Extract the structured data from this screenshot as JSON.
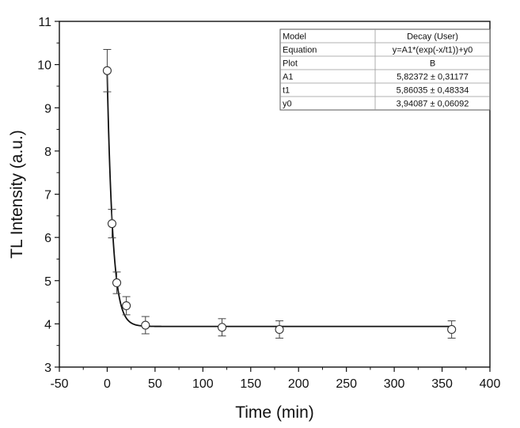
{
  "chart_data": {
    "type": "scatter",
    "xlabel": "Time (min)",
    "ylabel": "TL Intensity (a.u.)",
    "xlim": [
      -50,
      400
    ],
    "ylim": [
      3,
      11
    ],
    "x_ticks": [
      "-50",
      "0",
      "50",
      "100",
      "150",
      "200",
      "250",
      "300",
      "350",
      "400"
    ],
    "y_ticks": [
      "3",
      "4",
      "5",
      "6",
      "7",
      "8",
      "9",
      "10",
      "11"
    ],
    "grid": false,
    "series": [
      {
        "marker": "open-circle",
        "x": [
          0,
          5,
          10,
          20,
          40,
          120,
          180,
          360
        ],
        "y": [
          9.86,
          6.32,
          4.95,
          4.42,
          3.97,
          3.92,
          3.87,
          3.87
        ],
        "y_error": [
          0.49,
          0.33,
          0.25,
          0.21,
          0.2,
          0.2,
          0.2,
          0.2
        ]
      }
    ],
    "fit": {
      "model": "Decay (User)",
      "A1": 5.82372,
      "t1": 5.86035,
      "y0": 3.94087
    },
    "fit_table": {
      "position": "top-right",
      "rows": [
        [
          "Model",
          "Decay (User)"
        ],
        [
          "Equation",
          "y=A1*(exp(-x/t1))+y0"
        ],
        [
          "Plot",
          "B"
        ],
        [
          "A1",
          "5,82372 ± 0,31177"
        ],
        [
          "t1",
          "5,86035 ± 0,48334"
        ],
        [
          "y0",
          "3,94087 ± 0,06092"
        ]
      ]
    }
  }
}
